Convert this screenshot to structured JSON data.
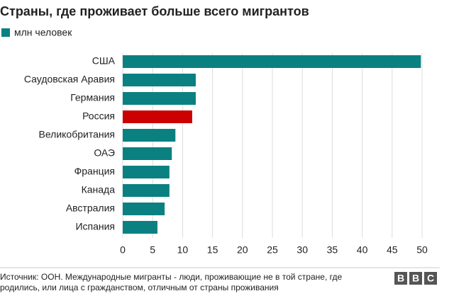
{
  "chart_data": {
    "type": "bar",
    "orientation": "horizontal",
    "title": "Страны, где проживает больше всего мигрантов",
    "legend": "млн человек",
    "color": "#0b8080",
    "categories": [
      "США",
      "Саудовская Аравия",
      "Германия",
      "Россия",
      "Великобритания",
      "ОАЭ",
      "Франция",
      "Канада",
      "Австралия",
      "Испания"
    ],
    "values": [
      49.8,
      12.2,
      12.2,
      11.6,
      8.8,
      8.2,
      7.8,
      7.8,
      7.0,
      5.8
    ],
    "colors": [
      "#0b8080",
      "#0b8080",
      "#0b8080",
      "#cc0000",
      "#0b8080",
      "#0b8080",
      "#0b8080",
      "#0b8080",
      "#0b8080",
      "#0b8080"
    ],
    "xlim": [
      0,
      50
    ],
    "xticks": [
      0,
      5,
      10,
      15,
      20,
      25,
      30,
      35,
      40,
      45,
      50
    ],
    "grid": true,
    "source": [
      "Источник: ООН. Международные мигранты - люди, проживающие не в той стране, где",
      "родились, или лица с гражданством, отличным от страны проживания"
    ],
    "logo": [
      "B",
      "B",
      "C"
    ]
  }
}
